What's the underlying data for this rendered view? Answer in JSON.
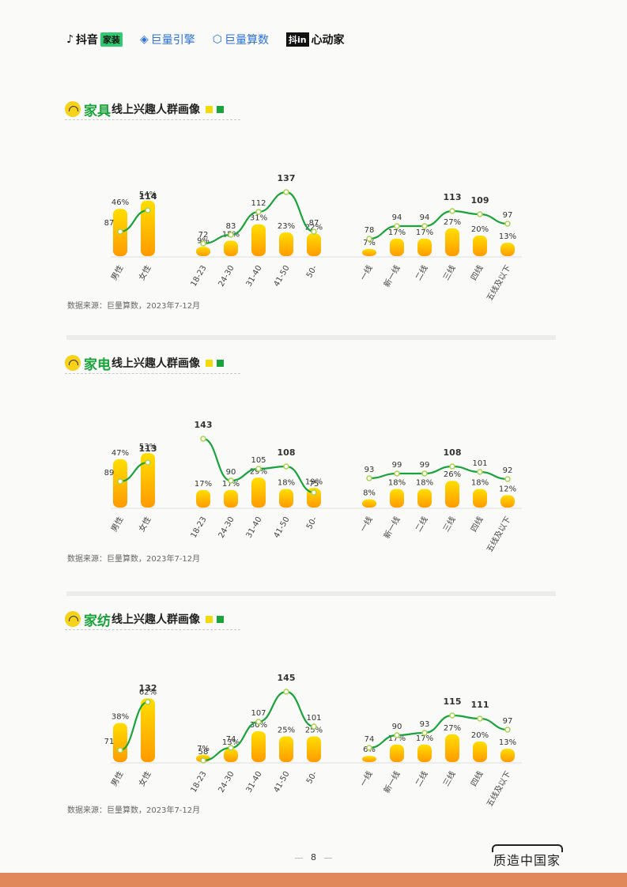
{
  "header": {
    "logos": [
      {
        "name": "douyin-home-logo",
        "text": "抖音",
        "badge": "家装"
      },
      {
        "name": "juliang-yinqing-logo",
        "text": "巨量引擎"
      },
      {
        "name": "juliang-suanshu-logo",
        "text": "巨量算数"
      },
      {
        "name": "douyin-xindongjia-logo",
        "box": "抖in",
        "text": "心动家"
      }
    ]
  },
  "colors": {
    "green": "#19a43b",
    "bar_top": "#ffde00",
    "bar_bottom": "#ff9a00",
    "footer_bar": "#e0885a"
  },
  "sections": [
    {
      "name": "家具",
      "subtitle": "线上兴趣人群画像",
      "source": "数据来源：巨量算数，2023年7-12月",
      "chart_data": [
        {
          "type": "bar+line",
          "group": "gender",
          "categories": [
            "男性",
            "女性"
          ],
          "bar_values": [
            "46%",
            "54%"
          ],
          "line_values": [
            87,
            114
          ],
          "max_tgi": [
            1
          ]
        },
        {
          "type": "bar+line",
          "group": "age",
          "categories": [
            "18-23",
            "24-30",
            "31-40",
            "41-50",
            "50-"
          ],
          "bar_values": [
            "9%",
            "15%",
            "31%",
            "23%",
            "22%"
          ],
          "line_values": [
            72,
            83,
            112,
            137,
            87
          ],
          "max_tgi": [
            3
          ]
        },
        {
          "type": "bar+line",
          "group": "city",
          "categories": [
            "一线",
            "新一线",
            "二线",
            "三线",
            "四线",
            "五线及以下"
          ],
          "bar_values": [
            "7%",
            "17%",
            "17%",
            "27%",
            "20%",
            "13%"
          ],
          "line_values": [
            78,
            94,
            94,
            113,
            109,
            97
          ],
          "max_tgi": [
            3,
            4
          ]
        }
      ]
    },
    {
      "name": "家电",
      "subtitle": "线上兴趣人群画像",
      "source": "数据来源：巨量算数，2023年7-12月",
      "chart_data": [
        {
          "type": "bar+line",
          "group": "gender",
          "categories": [
            "男性",
            "女性"
          ],
          "bar_values": [
            "47%",
            "53%"
          ],
          "line_values": [
            89,
            113
          ],
          "max_tgi": [
            1
          ]
        },
        {
          "type": "bar+line",
          "group": "age",
          "categories": [
            "18-23",
            "24-30",
            "31-40",
            "41-50",
            "50-"
          ],
          "bar_values": [
            "17%",
            "17%",
            "29%",
            "18%",
            "19%"
          ],
          "line_values": [
            143,
            90,
            105,
            108,
            75
          ],
          "max_tgi": [
            0,
            3
          ]
        },
        {
          "type": "bar+line",
          "group": "city",
          "categories": [
            "一线",
            "新一线",
            "二线",
            "三线",
            "四线",
            "五线及以下"
          ],
          "bar_values": [
            "8%",
            "18%",
            "18%",
            "26%",
            "18%",
            "12%"
          ],
          "line_values": [
            93,
            99,
            99,
            108,
            101,
            92
          ],
          "max_tgi": [
            3
          ]
        }
      ]
    },
    {
      "name": "家纺",
      "subtitle": "线上兴趣人群画像",
      "source": "数据来源：巨量算数，2023年7-12月",
      "chart_data": [
        {
          "type": "bar+line",
          "group": "gender",
          "categories": [
            "男性",
            "女性"
          ],
          "bar_values": [
            "38%",
            "62%"
          ],
          "line_values": [
            71,
            132
          ],
          "max_tgi": [
            1
          ]
        },
        {
          "type": "bar+line",
          "group": "age",
          "categories": [
            "18-23",
            "24-30",
            "31-40",
            "41-50",
            "50-"
          ],
          "bar_values": [
            "7%",
            "13%",
            "30%",
            "25%",
            "25%"
          ],
          "line_values": [
            58,
            74,
            107,
            145,
            101
          ],
          "max_tgi": [
            3
          ]
        },
        {
          "type": "bar+line",
          "group": "city",
          "categories": [
            "一线",
            "新一线",
            "二线",
            "三线",
            "四线",
            "五线及以下"
          ],
          "bar_values": [
            "6%",
            "17%",
            "17%",
            "27%",
            "20%",
            "13%"
          ],
          "line_values": [
            74,
            90,
            93,
            115,
            111,
            97
          ],
          "max_tgi": [
            3,
            4
          ]
        }
      ]
    }
  ],
  "footer": {
    "page": "8",
    "brand": "质造中国家"
  }
}
